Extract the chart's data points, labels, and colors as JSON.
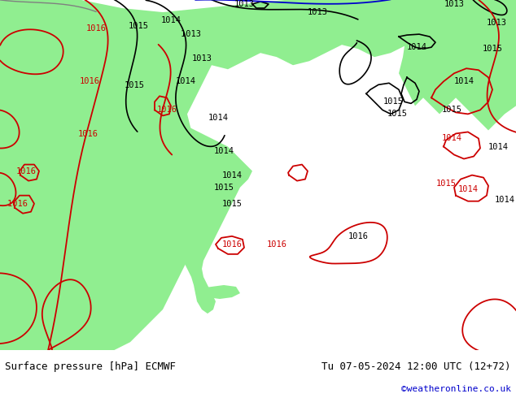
{
  "title_left": "Surface pressure [hPa] ECMWF",
  "title_right": "Tu 07-05-2024 12:00 UTC (12+72)",
  "credit": "©weatheronline.co.uk",
  "credit_color": "#0000cc",
  "bg_color": "#d8d8d8",
  "land_color": "#90ee90",
  "sea_color": "#d8d8d8",
  "fig_width": 6.34,
  "fig_height": 4.9,
  "dpi": 100,
  "bottom_bar_color": "#e8e8e8",
  "bottom_text_color": "#000000",
  "isobar_black_color": "#000000",
  "isobar_red_color": "#cc0000",
  "isobar_blue_color": "#0000cc",
  "isobar_gray_color": "#808080",
  "label_fontsize": 7.5,
  "title_fontsize": 9
}
